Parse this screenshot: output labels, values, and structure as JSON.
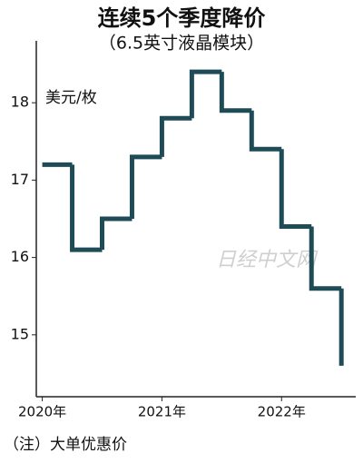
{
  "chart_data": {
    "type": "step",
    "title": "连续5个季度降价",
    "subtitle": "（6.5英寸液晶模块）",
    "y_label": "美元/枚",
    "note": "（注）大单优惠价",
    "watermark": "日经中文网",
    "x": [
      2020,
      2020.25,
      2020.5,
      2020.75,
      2021,
      2021.25,
      2021.5,
      2021.75,
      2022,
      2022.25,
      2022.5
    ],
    "values": [
      17.2,
      16.1,
      16.5,
      17.3,
      17.8,
      18.4,
      17.9,
      17.4,
      16.4,
      15.6,
      14.6
    ],
    "color": "#1f4b57",
    "xlim": [
      2019.95,
      2022.62
    ],
    "xticks": [
      {
        "value": 2020,
        "label": "2020年"
      },
      {
        "value": 2021,
        "label": "2021年"
      },
      {
        "value": 2022,
        "label": "2022年"
      }
    ],
    "ylim": [
      14.2,
      18.8
    ],
    "yticks": [
      15,
      16,
      17,
      18
    ]
  }
}
